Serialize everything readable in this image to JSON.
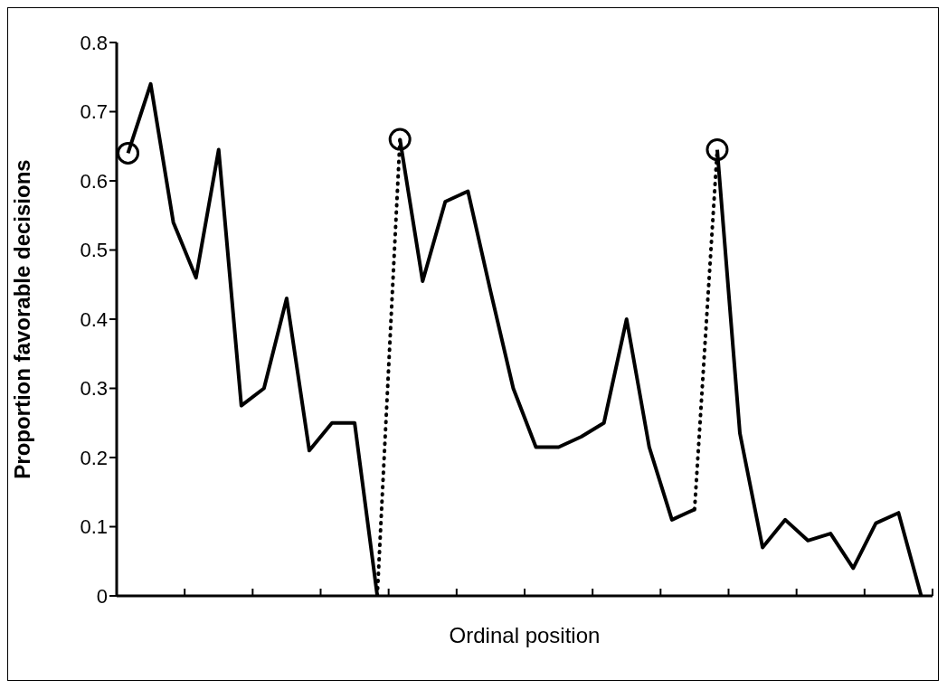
{
  "chart_data": {
    "type": "line",
    "xlabel": "Ordinal position",
    "ylabel": "Proportion favorable decisions",
    "categories": [
      null,
      null,
      null,
      null,
      null,
      null,
      null,
      null,
      null,
      null,
      null,
      null,
      null,
      null,
      null,
      null,
      null,
      null,
      null,
      null,
      null,
      null,
      null,
      null,
      null,
      null,
      null,
      null,
      null,
      null,
      null,
      null,
      null,
      null,
      null,
      null
    ],
    "ylim": [
      0,
      0.8
    ],
    "yticks": [
      0,
      0.1,
      0.2,
      0.3,
      0.4,
      0.5,
      0.6,
      0.7,
      0.8
    ],
    "grid": false,
    "series": [
      {
        "color": "#000000",
        "line_style": "solid",
        "values": [
          0.64,
          0.74,
          0.54,
          0.46,
          0.645,
          0.275,
          0.3,
          0.43,
          0.21,
          0.25,
          0.25,
          0,
          null,
          null,
          null,
          null,
          null,
          null,
          null,
          null,
          null,
          null,
          null,
          null,
          null,
          null,
          null,
          null,
          null,
          null,
          null,
          null,
          null,
          null,
          null,
          null
        ]
      },
      {
        "color": "#000000",
        "line_style": "solid",
        "values": [
          null,
          null,
          null,
          null,
          null,
          null,
          null,
          null,
          null,
          null,
          null,
          null,
          0.66,
          0.455,
          0.57,
          0.585,
          0.44,
          0.3,
          0.215,
          0.215,
          0.23,
          0.25,
          0.4,
          0.215,
          0.11,
          0.125,
          null,
          null,
          null,
          null,
          null,
          null,
          null,
          null,
          null,
          null
        ]
      },
      {
        "color": "#000000",
        "line_style": "solid",
        "values": [
          null,
          null,
          null,
          null,
          null,
          null,
          null,
          null,
          null,
          null,
          null,
          null,
          null,
          null,
          null,
          null,
          null,
          null,
          null,
          null,
          null,
          null,
          null,
          null,
          null,
          null,
          0.645,
          0.235,
          0.07,
          0.11,
          0.08,
          0.09,
          0.04,
          0.105,
          0.12,
          0
        ]
      },
      {
        "color": "#000000",
        "line_style": "dotted",
        "values": [
          null,
          null,
          null,
          null,
          null,
          null,
          null,
          null,
          null,
          null,
          null,
          0,
          0.66,
          null,
          null,
          null,
          null,
          null,
          null,
          null,
          null,
          null,
          null,
          null,
          null,
          null,
          null,
          null,
          null,
          null,
          null,
          null,
          null,
          null,
          null,
          null
        ]
      },
      {
        "color": "#000000",
        "line_style": "dotted",
        "values": [
          null,
          null,
          null,
          null,
          null,
          null,
          null,
          null,
          null,
          null,
          null,
          null,
          null,
          null,
          null,
          null,
          null,
          null,
          null,
          null,
          null,
          null,
          null,
          null,
          null,
          0.125,
          0.645,
          null,
          null,
          null,
          null,
          null,
          null,
          null,
          null,
          null
        ]
      },
      {
        "type": "scatter",
        "color": "#000000",
        "marker": "circle",
        "values": [
          0.64,
          null,
          null,
          null,
          null,
          null,
          null,
          null,
          null,
          null,
          null,
          null,
          0.66,
          null,
          null,
          null,
          null,
          null,
          null,
          null,
          null,
          null,
          null,
          null,
          null,
          null,
          0.645,
          null,
          null,
          null,
          null,
          null,
          null,
          null,
          null,
          null
        ]
      }
    ]
  }
}
